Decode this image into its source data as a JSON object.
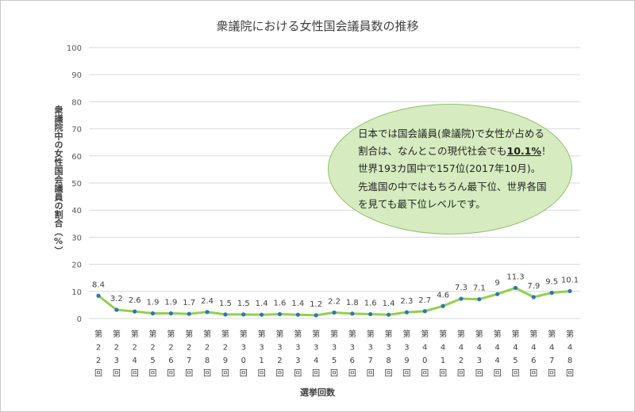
{
  "chart_data": {
    "type": "line",
    "title": "衆議院における女性国会議員数の推移",
    "ylabel": "衆議院中の女性国会議員の割合（%）",
    "xlabel": "選挙回数",
    "ylim": [
      0,
      100
    ],
    "yticks": [
      0,
      10,
      20,
      30,
      40,
      50,
      60,
      70,
      80,
      90,
      100
    ],
    "categories": [
      "第22回",
      "第23回",
      "第24回",
      "第25回",
      "第26回",
      "第27回",
      "第28回",
      "第29回",
      "第30回",
      "第31回",
      "第32回",
      "第33回",
      "第34回",
      "第35回",
      "第36回",
      "第37回",
      "第38回",
      "第39回",
      "第40回",
      "第41回",
      "第42回",
      "第43回",
      "第44回",
      "第45回",
      "第46回",
      "第47回",
      "第48回"
    ],
    "tick_chars": [
      [
        "第",
        "2",
        "2",
        "回"
      ],
      [
        "第",
        "2",
        "3",
        "回"
      ],
      [
        "第",
        "2",
        "4",
        "回"
      ],
      [
        "第",
        "2",
        "5",
        "回"
      ],
      [
        "第",
        "2",
        "6",
        "回"
      ],
      [
        "第",
        "2",
        "7",
        "回"
      ],
      [
        "第",
        "2",
        "8",
        "回"
      ],
      [
        "第",
        "2",
        "9",
        "回"
      ],
      [
        "第",
        "3",
        "0",
        "回"
      ],
      [
        "第",
        "3",
        "1",
        "回"
      ],
      [
        "第",
        "3",
        "2",
        "回"
      ],
      [
        "第",
        "3",
        "3",
        "回"
      ],
      [
        "第",
        "3",
        "4",
        "回"
      ],
      [
        "第",
        "3",
        "5",
        "回"
      ],
      [
        "第",
        "3",
        "6",
        "回"
      ],
      [
        "第",
        "3",
        "7",
        "回"
      ],
      [
        "第",
        "3",
        "8",
        "回"
      ],
      [
        "第",
        "3",
        "9",
        "回"
      ],
      [
        "第",
        "4",
        "0",
        "回"
      ],
      [
        "第",
        "4",
        "1",
        "回"
      ],
      [
        "第",
        "4",
        "2",
        "回"
      ],
      [
        "第",
        "4",
        "3",
        "回"
      ],
      [
        "第",
        "4",
        "4",
        "回"
      ],
      [
        "第",
        "4",
        "5",
        "回"
      ],
      [
        "第",
        "4",
        "6",
        "回"
      ],
      [
        "第",
        "4",
        "7",
        "回"
      ],
      [
        "第",
        "4",
        "8",
        "回"
      ]
    ],
    "values": [
      8.4,
      3.2,
      2.6,
      1.9,
      1.9,
      1.7,
      2.4,
      1.5,
      1.5,
      1.4,
      1.6,
      1.4,
      1.2,
      2.2,
      1.8,
      1.6,
      1.4,
      2.3,
      2.7,
      4.6,
      7.3,
      7.1,
      9,
      11.3,
      7.9,
      9.5,
      10.1
    ],
    "data_labels": [
      "8.4",
      "3.2",
      "2.6",
      "1.9",
      "1.9",
      "1.7",
      "2.4",
      "1.5",
      "1.5",
      "1.4",
      "1.6",
      "1.4",
      "1.2",
      "2.2",
      "1.8",
      "1.6",
      "1.4",
      "2.3",
      "2.7",
      "4.6",
      "7.3",
      "7.1",
      "9",
      "11.3",
      "7.9",
      "9.5",
      "10.1"
    ],
    "grid": true,
    "line_color": "#92d050",
    "marker_color": "#2e75b6",
    "grid_color": "#d9d9d9"
  },
  "annotation": {
    "line1": "日本では国会議員(衆議院)で女性が占める",
    "line2_pre": "割合は、なんとこの現代社会でも",
    "line2_highlight": "10.1%",
    "line2_post": "！",
    "line3": "世界193カ国中で157位(2017年10月)。",
    "line4": "先進国の中ではもちろん最下位、世界各国",
    "line5": "を見ても最下位レベルです。"
  }
}
